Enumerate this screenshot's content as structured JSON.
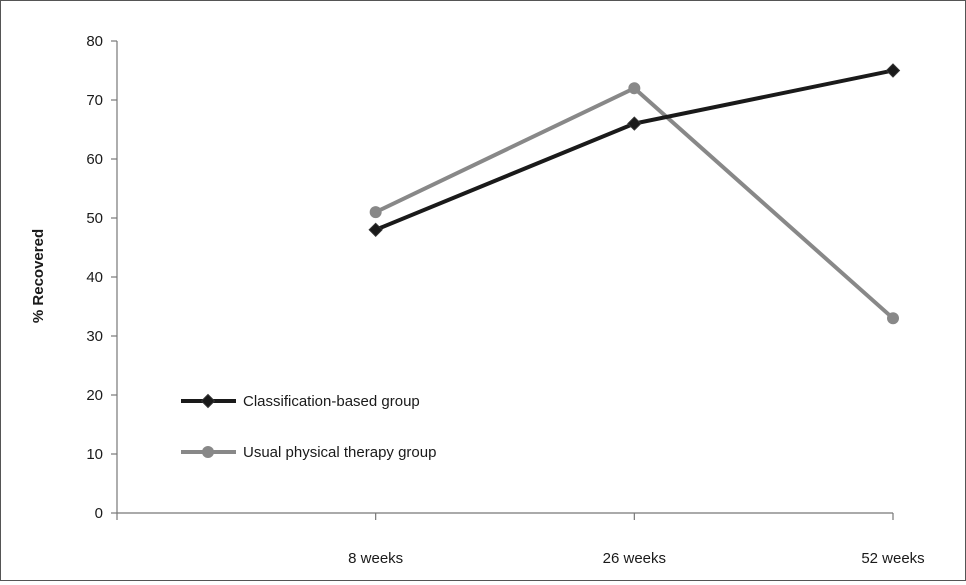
{
  "chart_data": {
    "type": "line",
    "title": "",
    "xlabel": "",
    "ylabel": "% Recovered",
    "ylim": [
      0,
      80
    ],
    "yticks": [
      0,
      10,
      20,
      30,
      40,
      50,
      60,
      70,
      80
    ],
    "categories": [
      "",
      "8 weeks",
      "26 weeks",
      "52 weeks"
    ],
    "grid": false,
    "legend_position": "bottom-left",
    "series": [
      {
        "name": "Classification-based group",
        "values": [
          null,
          48,
          66,
          75
        ],
        "color": "#1a1a1a",
        "marker": "diamond"
      },
      {
        "name": "Usual physical therapy group",
        "values": [
          null,
          51,
          72,
          33
        ],
        "color": "#888888",
        "marker": "circle"
      }
    ]
  }
}
